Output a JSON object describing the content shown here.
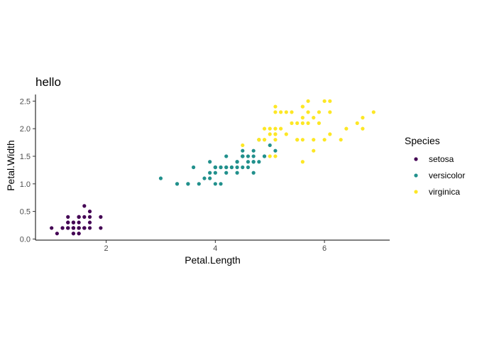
{
  "chart_data": {
    "type": "scatter",
    "title": "hello",
    "xlabel": "Petal.Length",
    "ylabel": "Petal.Width",
    "xlim": [
      0.705,
      7.195
    ],
    "ylim": [
      -0.02,
      2.62
    ],
    "xticks": [
      2,
      4,
      6
    ],
    "xtick_labels": [
      "2",
      "4",
      "6"
    ],
    "yticks": [
      0,
      0.5,
      1,
      1.5,
      2,
      2.5
    ],
    "ytick_labels": [
      "0.0",
      "0.5",
      "1.0",
      "1.5",
      "2.0",
      "2.5"
    ],
    "grid": false,
    "legend": {
      "title": "Species",
      "position": "right"
    },
    "series": [
      {
        "name": "setosa",
        "color": "#440154",
        "x": [
          1.4,
          1.4,
          1.3,
          1.5,
          1.4,
          1.7,
          1.4,
          1.5,
          1.4,
          1.5,
          1.5,
          1.6,
          1.4,
          1.1,
          1.2,
          1.5,
          1.3,
          1.4,
          1.7,
          1.5,
          1.7,
          1.5,
          1.0,
          1.7,
          1.9,
          1.6,
          1.6,
          1.5,
          1.4,
          1.6,
          1.6,
          1.5,
          1.5,
          1.4,
          1.5,
          1.2,
          1.3,
          1.4,
          1.3,
          1.5,
          1.3,
          1.3,
          1.3,
          1.6,
          1.9,
          1.4,
          1.6,
          1.4,
          1.5,
          1.4
        ],
        "y": [
          0.2,
          0.2,
          0.2,
          0.2,
          0.2,
          0.4,
          0.3,
          0.2,
          0.2,
          0.1,
          0.2,
          0.2,
          0.1,
          0.1,
          0.2,
          0.4,
          0.4,
          0.3,
          0.3,
          0.3,
          0.2,
          0.4,
          0.2,
          0.5,
          0.2,
          0.2,
          0.4,
          0.2,
          0.2,
          0.2,
          0.2,
          0.4,
          0.1,
          0.2,
          0.2,
          0.2,
          0.2,
          0.1,
          0.2,
          0.2,
          0.3,
          0.3,
          0.2,
          0.6,
          0.4,
          0.3,
          0.2,
          0.2,
          0.2,
          0.2
        ]
      },
      {
        "name": "versicolor",
        "color": "#21908C",
        "x": [
          4.7,
          4.5,
          4.9,
          4.0,
          4.6,
          4.5,
          4.7,
          3.3,
          4.6,
          3.9,
          3.5,
          4.2,
          4.0,
          4.7,
          3.6,
          4.4,
          4.5,
          4.1,
          4.5,
          3.9,
          4.8,
          4.0,
          4.9,
          4.7,
          4.3,
          4.4,
          4.8,
          5.0,
          4.5,
          3.5,
          3.8,
          3.7,
          3.9,
          5.1,
          4.5,
          4.5,
          4.7,
          4.4,
          4.1,
          4.0,
          4.4,
          4.6,
          4.0,
          3.3,
          4.2,
          4.2,
          4.2,
          4.3,
          3.0,
          4.1
        ],
        "y": [
          1.4,
          1.5,
          1.5,
          1.3,
          1.5,
          1.3,
          1.6,
          1.0,
          1.3,
          1.4,
          1.0,
          1.5,
          1.0,
          1.4,
          1.3,
          1.4,
          1.5,
          1.0,
          1.5,
          1.1,
          1.8,
          1.3,
          1.5,
          1.2,
          1.3,
          1.4,
          1.4,
          1.7,
          1.5,
          1.0,
          1.1,
          1.0,
          1.2,
          1.6,
          1.5,
          1.6,
          1.5,
          1.3,
          1.3,
          1.3,
          1.2,
          1.4,
          1.2,
          1.0,
          1.3,
          1.2,
          1.3,
          1.3,
          1.1,
          1.3
        ]
      },
      {
        "name": "virginica",
        "color": "#FDE725",
        "x": [
          6.0,
          5.1,
          5.9,
          5.6,
          5.8,
          6.6,
          4.5,
          6.3,
          5.8,
          6.1,
          5.1,
          5.3,
          5.5,
          5.0,
          5.1,
          5.3,
          5.5,
          6.7,
          6.9,
          5.0,
          5.7,
          4.9,
          6.7,
          4.9,
          5.7,
          6.0,
          4.8,
          4.9,
          5.6,
          5.8,
          6.1,
          6.4,
          5.6,
          5.1,
          5.6,
          6.1,
          5.6,
          5.5,
          4.8,
          5.4,
          5.6,
          5.1,
          5.1,
          5.9,
          5.7,
          5.2,
          5.0,
          5.2,
          5.4,
          5.1
        ],
        "y": [
          2.5,
          1.9,
          2.1,
          1.8,
          2.2,
          2.1,
          1.7,
          1.8,
          1.8,
          2.5,
          2.0,
          1.9,
          2.1,
          2.0,
          2.4,
          2.3,
          1.8,
          2.2,
          2.3,
          1.5,
          2.3,
          2.0,
          2.0,
          1.8,
          2.1,
          1.8,
          1.8,
          1.8,
          2.1,
          1.6,
          1.9,
          2.0,
          2.2,
          1.5,
          1.4,
          2.3,
          2.4,
          1.8,
          1.8,
          2.1,
          2.4,
          2.3,
          1.9,
          2.3,
          2.5,
          2.3,
          1.9,
          2.0,
          2.3,
          1.8
        ]
      }
    ]
  }
}
